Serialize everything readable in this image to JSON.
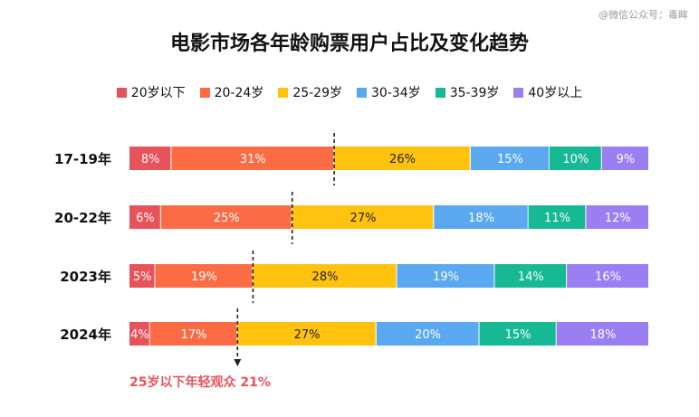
{
  "watermark": "@微信公众号：毒眸",
  "chart_data": {
    "type": "bar",
    "orientation": "horizontal",
    "stacked": "100%",
    "title": "电影市场各年龄购票用户占比及变化趋势",
    "categories": [
      "17-19年",
      "20-22年",
      "2023年",
      "2024年"
    ],
    "series": [
      {
        "name": "20岁以下",
        "color": "#e8525a",
        "values": [
          8,
          6,
          5,
          4
        ]
      },
      {
        "name": "20-24岁",
        "color": "#fb6c45",
        "values": [
          31,
          25,
          19,
          17
        ]
      },
      {
        "name": "25-29岁",
        "color": "#ffc20e",
        "values": [
          26,
          27,
          28,
          27
        ]
      },
      {
        "name": "30-34岁",
        "color": "#5aa8ef",
        "values": [
          15,
          18,
          19,
          20
        ]
      },
      {
        "name": "35-39岁",
        "color": "#17b894",
        "values": [
          10,
          11,
          14,
          15
        ]
      },
      {
        "name": "40岁以上",
        "color": "#9a7ef2",
        "values": [
          9,
          12,
          16,
          18
        ]
      }
    ],
    "value_suffix": "%",
    "legend_position": "top",
    "annotation": "25岁以下年轻观众 21%"
  }
}
